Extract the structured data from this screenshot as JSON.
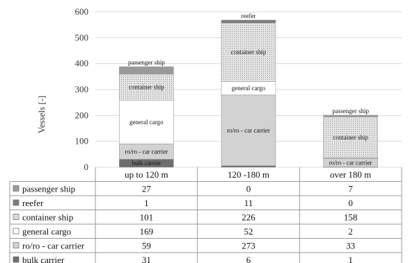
{
  "chart_data": {
    "type": "bar",
    "stacked": true,
    "title": "",
    "xlabel": "",
    "ylabel": "Vessels [-]",
    "ylim": [
      0,
      600
    ],
    "yticks": [
      0,
      100,
      200,
      300,
      400,
      500,
      600
    ],
    "grid": true,
    "legend": "data-table-below",
    "categories": [
      "up to 120 m",
      "120 -180 m",
      "over 180 m"
    ],
    "series": [
      {
        "name": "bulk carrier",
        "values": [
          31,
          6,
          1
        ],
        "color": "#6d6d6d",
        "pattern": "solid"
      },
      {
        "name": "ro/ro - car carrier",
        "values": [
          59,
          273,
          33
        ],
        "color": "#d2d2d2",
        "pattern": "solid"
      },
      {
        "name": "general cargo",
        "values": [
          169,
          52,
          2
        ],
        "color": "#ffffff",
        "pattern": "solid"
      },
      {
        "name": "container ship",
        "values": [
          101,
          226,
          158
        ],
        "color": "#dcdcdc",
        "pattern": "dotted"
      },
      {
        "name": "reefer",
        "values": [
          1,
          11,
          0
        ],
        "color": "#7a7a7a",
        "pattern": "solid"
      },
      {
        "name": "passenger ship",
        "values": [
          27,
          0,
          7
        ],
        "color": "#9a9a9a",
        "pattern": "solid"
      }
    ],
    "segment_labels": [
      [
        "bulk carrier",
        "ro/ro - car carrier",
        "general cargo",
        "container ship",
        "",
        "passenger ship"
      ],
      [
        "",
        "ro/ro - car carrier",
        "general cargo",
        "container ship",
        "reefer",
        ""
      ],
      [
        "",
        "ro/ro - car carrier",
        "",
        "container ship",
        "",
        "passenger ship"
      ]
    ],
    "table_row_order": [
      "passenger ship",
      "reefer",
      "container ship",
      "general cargo",
      "ro/ro - car carrier",
      "bulk carrier"
    ]
  }
}
